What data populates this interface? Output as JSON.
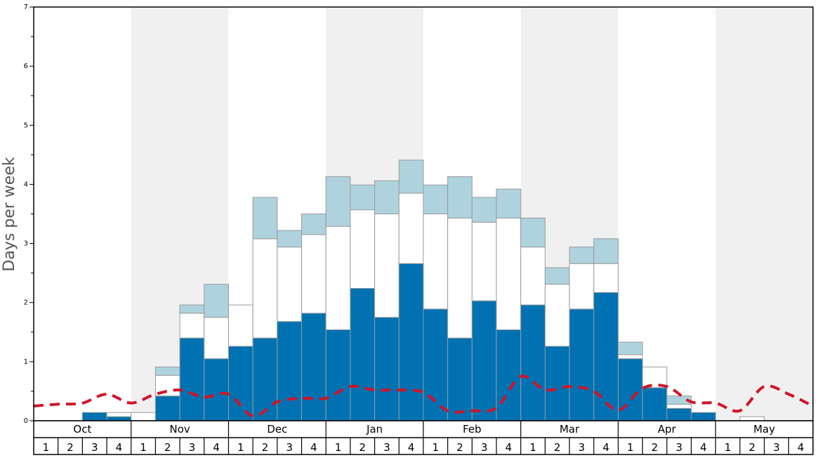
{
  "chart_data": {
    "type": "bar",
    "stacked": true,
    "ylabel": "Days per week",
    "ylim": [
      0,
      7
    ],
    "yticks": [
      "0",
      "1",
      "2",
      "3",
      "4",
      "5",
      "6",
      "7"
    ],
    "months": [
      "Oct",
      "Nov",
      "Dec",
      "Jan",
      "Feb",
      "Mar",
      "Apr",
      "May"
    ],
    "weeks": [
      "1",
      "2",
      "3",
      "4"
    ],
    "grid": false,
    "alternating_month_shading": true,
    "colors": {
      "dark": "#0072b2",
      "white": "#ffffff",
      "light": "#aed3df",
      "line": "#d0142a",
      "shade": "#f0f0f0",
      "bar_stroke": "#999999"
    },
    "series": [
      {
        "color_key": "dark",
        "values": [
          0,
          0,
          0.14,
          0.07,
          0,
          0.42,
          1.4,
          1.05,
          1.26,
          1.4,
          1.68,
          1.82,
          1.54,
          2.24,
          1.75,
          2.66,
          1.89,
          1.4,
          2.03,
          1.54,
          1.96,
          1.26,
          1.89,
          2.17,
          1.05,
          0.56,
          0.21,
          0.14,
          0,
          0,
          0,
          0
        ]
      },
      {
        "color_key": "white",
        "values": [
          0,
          0,
          0,
          0.07,
          0.14,
          0.35,
          0.42,
          0.7,
          0.7,
          1.68,
          1.26,
          1.33,
          1.75,
          1.33,
          1.75,
          1.19,
          1.61,
          2.03,
          1.33,
          1.89,
          0.98,
          1.05,
          0.77,
          0.49,
          0.07,
          0.35,
          0.07,
          0,
          0,
          0.07,
          0,
          0
        ]
      },
      {
        "color_key": "light",
        "values": [
          0,
          0,
          0,
          0,
          0,
          0.14,
          0.14,
          0.56,
          0,
          0.7,
          0.28,
          0.35,
          0.84,
          0.42,
          0.56,
          0.56,
          0.49,
          0.7,
          0.42,
          0.49,
          0.49,
          0.28,
          0.28,
          0.42,
          0.21,
          0,
          0.14,
          0,
          0,
          0,
          0,
          0
        ]
      }
    ],
    "line": {
      "style": "dashed",
      "color_key": "line",
      "values": [
        0.25,
        0.28,
        0.3,
        0.45,
        0.3,
        0.45,
        0.52,
        0.4,
        0.45,
        0.08,
        0.32,
        0.38,
        0.38,
        0.58,
        0.52,
        0.52,
        0.48,
        0.17,
        0.17,
        0.22,
        0.75,
        0.52,
        0.58,
        0.5,
        0.18,
        0.55,
        0.58,
        0.32,
        0.3,
        0.17,
        0.58,
        0.45,
        0.25
      ]
    }
  }
}
